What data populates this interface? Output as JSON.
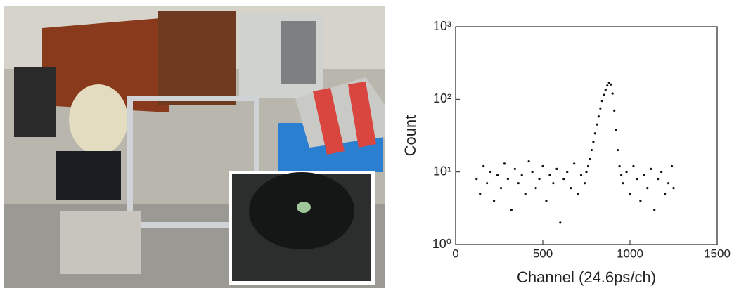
{
  "chart_data": {
    "type": "scatter",
    "x_label": "Channel (24.6ps/ch)",
    "y_label": "Count",
    "x": [
      120,
      140,
      160,
      180,
      200,
      220,
      240,
      260,
      280,
      300,
      320,
      340,
      360,
      380,
      400,
      420,
      440,
      460,
      480,
      500,
      520,
      540,
      560,
      580,
      600,
      620,
      640,
      660,
      680,
      700,
      720,
      740,
      750,
      760,
      770,
      780,
      790,
      800,
      810,
      820,
      830,
      840,
      850,
      860,
      870,
      880,
      890,
      900,
      910,
      920,
      930,
      940,
      950,
      960,
      980,
      1000,
      1020,
      1040,
      1060,
      1080,
      1100,
      1120,
      1140,
      1160,
      1180,
      1200,
      1220,
      1240,
      1250
    ],
    "y": [
      8,
      5,
      12,
      7,
      10,
      4,
      9,
      6,
      13,
      8,
      3,
      11,
      7,
      9,
      5,
      14,
      10,
      6,
      8,
      12,
      4,
      9,
      7,
      11,
      2,
      8,
      10,
      6,
      13,
      5,
      9,
      7,
      10,
      12,
      15,
      20,
      26,
      34,
      45,
      58,
      75,
      95,
      115,
      135,
      155,
      170,
      160,
      120,
      70,
      38,
      20,
      12,
      9,
      7,
      10,
      5,
      12,
      8,
      4,
      9,
      6,
      11,
      3,
      8,
      10,
      5,
      7,
      12,
      6
    ],
    "color": "#111111",
    "xlim": [
      0,
      1500
    ],
    "xticks": [
      0,
      500,
      1000,
      1500
    ],
    "ylim": [
      1,
      1000
    ],
    "log_y": true,
    "yticks": [
      {
        "value": 1,
        "label": "10⁰"
      },
      {
        "value": 10,
        "label": "10¹"
      },
      {
        "value": 100,
        "label": "10²"
      },
      {
        "value": 1000,
        "label": "10³"
      }
    ]
  }
}
